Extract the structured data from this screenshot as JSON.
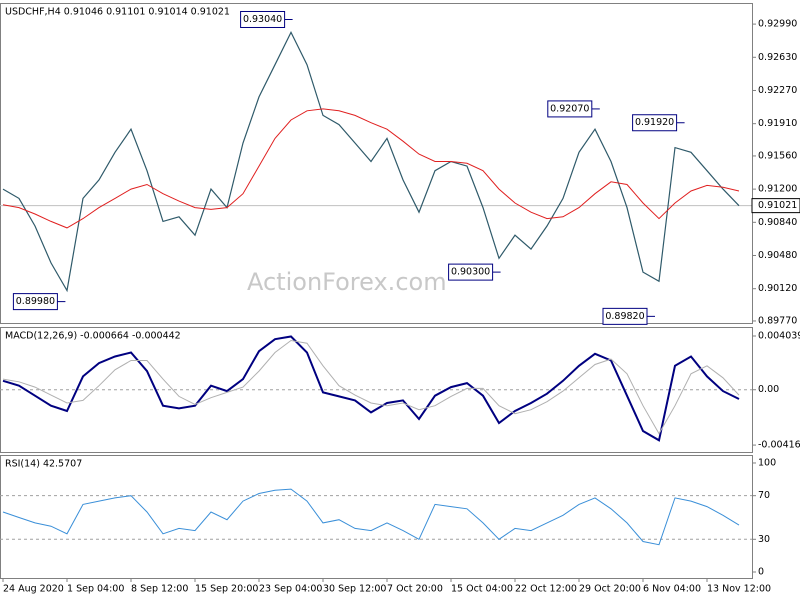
{
  "chart_data": [
    {
      "type": "line",
      "header": "USDCHF,H4 0.91046 0.91101 0.91014 0.91021",
      "watermark": "ActionForex.com",
      "series": [
        {
          "color": "#2f5a6a",
          "values": [
            0.912,
            0.911,
            0.908,
            0.904,
            0.901,
            0.911,
            0.913,
            0.916,
            0.9185,
            0.914,
            0.9085,
            0.909,
            0.907,
            0.912,
            0.91,
            0.917,
            0.922,
            0.9255,
            0.929,
            0.9255,
            0.92,
            0.919,
            0.917,
            0.915,
            0.9175,
            0.913,
            0.9095,
            0.914,
            0.915,
            0.9145,
            0.91,
            0.9045,
            0.907,
            0.9055,
            0.908,
            0.911,
            0.916,
            0.9185,
            0.915,
            0.91,
            0.903,
            0.902,
            0.9165,
            0.916,
            0.914,
            0.912,
            0.9102
          ]
        },
        {
          "color": "#e02020",
          "values": [
            0.9103,
            0.91,
            0.9093,
            0.9085,
            0.9078,
            0.9088,
            0.91,
            0.911,
            0.912,
            0.9125,
            0.9115,
            0.9107,
            0.91,
            0.9098,
            0.91,
            0.9115,
            0.9145,
            0.9175,
            0.9195,
            0.9205,
            0.9207,
            0.9205,
            0.92,
            0.9192,
            0.9185,
            0.9172,
            0.9158,
            0.915,
            0.915,
            0.9148,
            0.914,
            0.912,
            0.9105,
            0.9095,
            0.9088,
            0.909,
            0.91,
            0.9115,
            0.9128,
            0.9125,
            0.9105,
            0.9088,
            0.9105,
            0.9118,
            0.9124,
            0.9122,
            0.9118
          ]
        }
      ],
      "xlim": [
        -0.1875,
        46.8125
      ],
      "ylim": [
        0.89748,
        0.93208
      ],
      "yticks": [
        {
          "value": 0.9299,
          "label": "0.92990"
        },
        {
          "value": 0.9263,
          "label": "0.92630"
        },
        {
          "value": 0.9227,
          "label": "0.92270"
        },
        {
          "value": 0.9191,
          "label": "0.91910"
        },
        {
          "value": 0.9156,
          "label": "0.91560"
        },
        {
          "value": 0.912,
          "label": "0.91200"
        },
        {
          "value": 0.9084,
          "label": "0.90840"
        },
        {
          "value": 0.9048,
          "label": "0.90480"
        },
        {
          "value": 0.9012,
          "label": "0.90120"
        },
        {
          "value": 0.8977,
          "label": "0.89770"
        }
      ],
      "last_price": 0.91021,
      "annotations": [
        {
          "text": "0.93040",
          "value": 0.9304,
          "x": 18.1
        },
        {
          "text": "0.89980",
          "value": 0.8998,
          "x": 3.9
        },
        {
          "text": "0.92070",
          "value": 0.9207,
          "x": 37.3
        },
        {
          "text": "0.91920",
          "value": 0.9192,
          "x": 42.6
        },
        {
          "text": "0.90300",
          "value": 0.903,
          "x": 31.1
        },
        {
          "text": "0.89820",
          "value": 0.8982,
          "x": 40.75
        }
      ]
    },
    {
      "type": "line",
      "header": "MACD(12,26,9) -0.000664 -0.000442",
      "series": [
        {
          "color": "#000080",
          "values": [
            0.00067,
            0.0003,
            -0.00045,
            -0.0012,
            -0.0016,
            0.001,
            0.002,
            0.0025,
            0.0028,
            0.0014,
            -0.0012,
            -0.0014,
            -0.0012,
            0.0003,
            -0.0001,
            0.0008,
            0.0029,
            0.0038,
            0.004,
            0.0028,
            -0.0002,
            -0.0005,
            -0.0008,
            -0.0017,
            -0.001,
            -0.0008,
            -0.0022,
            -0.00045,
            0.0002,
            0.0005,
            -0.00045,
            -0.0025,
            -0.0016,
            -0.001,
            -0.0003,
            0.00067,
            0.0018,
            0.0027,
            0.0022,
            -0.00045,
            -0.0031,
            -0.0038,
            0.0018,
            0.0025,
            0.001,
            -0.0001,
            -0.0007
          ]
        },
        {
          "color": "#b0b0b0",
          "values": [
            0.0008,
            0.0006,
            0.0002,
            -0.0004,
            -0.001,
            -0.0008,
            0.0003,
            0.0015,
            0.0022,
            0.0022,
            0.0008,
            -0.0005,
            -0.0011,
            -0.0006,
            -0.0002,
            0.0002,
            0.0014,
            0.0028,
            0.0037,
            0.0035,
            0.0018,
            0.0003,
            -0.0004,
            -0.001,
            -0.0012,
            -0.001,
            -0.0015,
            -0.0012,
            -0.0005,
            0.0001,
            0.0001,
            -0.0012,
            -0.0018,
            -0.0015,
            -0.0009,
            -0.0001,
            0.0009,
            0.0019,
            0.0023,
            0.0012,
            -0.0012,
            -0.0033,
            -0.0012,
            0.0012,
            0.0018,
            0.0009,
            -0.0004
          ]
        }
      ],
      "xlim": [
        -0.1875,
        46.8125
      ],
      "ylim": [
        -0.00468,
        0.00464
      ],
      "yticks": [
        0.004039,
        {
          "value": 0,
          "label": "0.00"
        },
        -0.00416
      ],
      "levels": [
        0
      ]
    },
    {
      "type": "line",
      "header": "RSI(14) 42.5707",
      "series": [
        {
          "color": "#3a8fd8",
          "values": [
            55,
            50,
            45,
            42,
            35,
            62,
            65,
            68,
            70,
            55,
            35,
            40,
            38,
            55,
            48,
            65,
            72,
            75,
            76,
            65,
            45,
            48,
            40,
            38,
            45,
            38,
            30,
            62,
            60,
            58,
            45,
            30,
            40,
            38,
            45,
            52,
            62,
            68,
            58,
            45,
            28,
            25,
            68,
            65,
            60,
            52,
            43
          ]
        }
      ],
      "xlim": [
        -0.1875,
        46.8125
      ],
      "ylim": [
        -5.5,
        106.4
      ],
      "yticks": [
        100,
        70,
        30,
        0
      ],
      "levels": [
        70,
        30
      ],
      "xticks": [
        {
          "value": 0,
          "label": "24 Aug 2020"
        },
        {
          "value": 4,
          "label": "1 Sep 04:00"
        },
        {
          "value": 8,
          "label": "8 Sep 12:00"
        },
        {
          "value": 12,
          "label": "15 Sep 20:00"
        },
        {
          "value": 16,
          "label": "23 Sep 04:00"
        },
        {
          "value": 20,
          "label": "30 Sep 12:00"
        },
        {
          "value": 24,
          "label": "7 Oct 20:00"
        },
        {
          "value": 28,
          "label": "15 Oct 04:00"
        },
        {
          "value": 32,
          "label": "22 Oct 12:00"
        },
        {
          "value": 36,
          "label": "29 Oct 20:00"
        },
        {
          "value": 40,
          "label": "6 Nov 04:00"
        },
        {
          "value": 44,
          "label": "13 Nov 12:00"
        }
      ]
    }
  ]
}
